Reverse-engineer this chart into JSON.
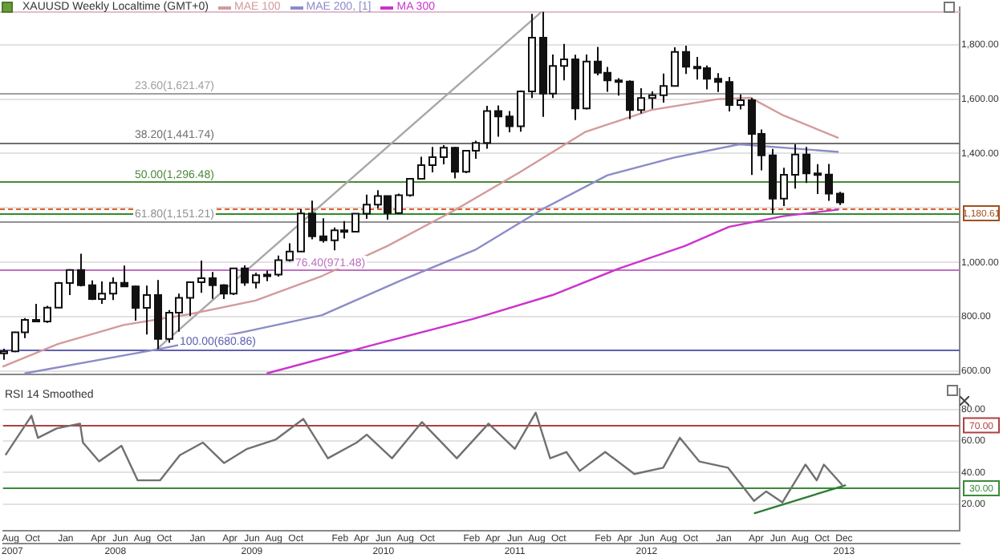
{
  "chart_data": [
    {
      "type": "candlestick",
      "title": "XAUUSD Weekly Localtime (GMT+0)",
      "legend": "top left",
      "grid": "y",
      "tick_labels": "y",
      "x": [
        "2007-08",
        "2007-09",
        "2007-10",
        "2007-11",
        "2007-12",
        "2008-01",
        "2008-02",
        "2008-03",
        "2008-04",
        "2008-05",
        "2008-06",
        "2008-07",
        "2008-08",
        "2008-09",
        "2008-10",
        "2008-11",
        "2008-12",
        "2009-01",
        "2009-02",
        "2009-03",
        "2009-04",
        "2009-05",
        "2009-06",
        "2009-07",
        "2009-08",
        "2009-09",
        "2009-10",
        "2009-11",
        "2009-12",
        "2010-01",
        "2010-02",
        "2010-03",
        "2010-04",
        "2010-05",
        "2010-06",
        "2010-07",
        "2010-08",
        "2010-09",
        "2010-10",
        "2010-11",
        "2010-12",
        "2011-01",
        "2011-02",
        "2011-03",
        "2011-04",
        "2011-05",
        "2011-06",
        "2011-07",
        "2011-08",
        "2011-09",
        "2011-10",
        "2011-11",
        "2011-12",
        "2012-01",
        "2012-02",
        "2012-03",
        "2012-04",
        "2012-05",
        "2012-06",
        "2012-07",
        "2012-08",
        "2012-09",
        "2012-10",
        "2012-11",
        "2012-12",
        "2013-01",
        "2013-02",
        "2013-03",
        "2013-04",
        "2013-05",
        "2013-06",
        "2013-07",
        "2013-08",
        "2013-09",
        "2013-10",
        "2013-11",
        "2013-12"
      ],
      "ohlc": [
        [
          666,
          683,
          642,
          673
        ],
        [
          673,
          745,
          670,
          743
        ],
        [
          743,
          795,
          722,
          789
        ],
        [
          789,
          848,
          781,
          783
        ],
        [
          783,
          840,
          778,
          834
        ],
        [
          834,
          928,
          834,
          924
        ],
        [
          924,
          975,
          880,
          972
        ],
        [
          972,
          1032,
          912,
          916
        ],
        [
          916,
          934,
          862,
          865
        ],
        [
          865,
          930,
          848,
          885
        ],
        [
          885,
          945,
          862,
          925
        ],
        [
          925,
          988,
          910,
          912
        ],
        [
          912,
          915,
          786,
          833
        ],
        [
          833,
          915,
          735,
          880
        ],
        [
          880,
          935,
          681,
          719
        ],
        [
          719,
          825,
          705,
          815
        ],
        [
          815,
          885,
          745,
          870
        ],
        [
          870,
          927,
          803,
          927
        ],
        [
          927,
          1007,
          888,
          942
        ],
        [
          942,
          965,
          866,
          916
        ],
        [
          916,
          920,
          865,
          885
        ],
        [
          885,
          980,
          880,
          978
        ],
        [
          978,
          989,
          914,
          926
        ],
        [
          926,
          962,
          904,
          953
        ],
        [
          953,
          970,
          931,
          955
        ],
        [
          955,
          1025,
          948,
          1008
        ],
        [
          1008,
          1070,
          1003,
          1040
        ],
        [
          1040,
          1195,
          1040,
          1180
        ],
        [
          1180,
          1227,
          1085,
          1096
        ],
        [
          1096,
          1162,
          1073,
          1081
        ],
        [
          1081,
          1128,
          1044,
          1118
        ],
        [
          1118,
          1152,
          1088,
          1113
        ],
        [
          1113,
          1179,
          1112,
          1179
        ],
        [
          1179,
          1249,
          1160,
          1212
        ],
        [
          1212,
          1265,
          1199,
          1244
        ],
        [
          1244,
          1245,
          1157,
          1181
        ],
        [
          1181,
          1253,
          1178,
          1247
        ],
        [
          1247,
          1310,
          1242,
          1307
        ],
        [
          1307,
          1388,
          1306,
          1357
        ],
        [
          1357,
          1424,
          1331,
          1387
        ],
        [
          1387,
          1431,
          1360,
          1421
        ],
        [
          1421,
          1424,
          1309,
          1333
        ],
        [
          1333,
          1411,
          1328,
          1410
        ],
        [
          1410,
          1447,
          1381,
          1439
        ],
        [
          1439,
          1575,
          1418,
          1556
        ],
        [
          1556,
          1577,
          1462,
          1536
        ],
        [
          1536,
          1556,
          1478,
          1500
        ],
        [
          1500,
          1632,
          1480,
          1628
        ],
        [
          1628,
          1913,
          1604,
          1826
        ],
        [
          1826,
          1921,
          1535,
          1620
        ],
        [
          1620,
          1764,
          1604,
          1722
        ],
        [
          1722,
          1803,
          1669,
          1746
        ],
        [
          1746,
          1763,
          1523,
          1566
        ],
        [
          1566,
          1764,
          1562,
          1738
        ],
        [
          1738,
          1792,
          1687,
          1697
        ],
        [
          1697,
          1718,
          1627,
          1669
        ],
        [
          1669,
          1677,
          1613,
          1664
        ],
        [
          1664,
          1669,
          1527,
          1560
        ],
        [
          1560,
          1640,
          1547,
          1604
        ],
        [
          1604,
          1628,
          1564,
          1614
        ],
        [
          1614,
          1694,
          1587,
          1648
        ],
        [
          1648,
          1790,
          1646,
          1773
        ],
        [
          1773,
          1796,
          1692,
          1719
        ],
        [
          1719,
          1755,
          1672,
          1714
        ],
        [
          1714,
          1723,
          1636,
          1675
        ],
        [
          1675,
          1695,
          1626,
          1663
        ],
        [
          1663,
          1681,
          1555,
          1578
        ],
        [
          1578,
          1617,
          1562,
          1596
        ],
        [
          1596,
          1605,
          1321,
          1472
        ],
        [
          1472,
          1488,
          1338,
          1393
        ],
        [
          1393,
          1417,
          1180,
          1234
        ],
        [
          1234,
          1348,
          1207,
          1322
        ],
        [
          1322,
          1434,
          1271,
          1396
        ],
        [
          1396,
          1424,
          1292,
          1327
        ],
        [
          1327,
          1361,
          1251,
          1323
        ],
        [
          1323,
          1362,
          1226,
          1253
        ],
        [
          1253,
          1259,
          1211,
          1220
        ]
      ],
      "series": [
        {
          "name": "MAE 100",
          "type": "line",
          "color": "#d49a9a",
          "x": [
            "2007-08",
            "2008-01",
            "2008-07",
            "2009-01",
            "2009-07",
            "2010-01",
            "2010-07",
            "2011-01",
            "2011-07",
            "2012-01",
            "2012-07",
            "2013-01",
            "2013-04",
            "2013-07",
            "2013-12"
          ],
          "values": [
            617,
            700,
            770,
            810,
            860,
            950,
            1060,
            1190,
            1330,
            1480,
            1560,
            1600,
            1605,
            1540,
            1457
          ]
        },
        {
          "name": "MAE 200, [1]",
          "type": "line",
          "color": "#8c8cc8",
          "x": [
            "2007-10",
            "2008-10",
            "2009-06",
            "2010-01",
            "2010-08",
            "2011-03",
            "2011-09",
            "2012-03",
            "2012-09",
            "2013-03",
            "2013-12"
          ],
          "values": [
            592,
            680,
            745,
            806,
            930,
            1046,
            1194,
            1320,
            1385,
            1434,
            1406
          ]
        },
        {
          "name": "MA 300",
          "type": "line",
          "color": "#cc33cc",
          "x": [
            "2009-08",
            "2010-06",
            "2011-03",
            "2011-10",
            "2012-04",
            "2012-10",
            "2013-02",
            "2013-07",
            "2013-12"
          ],
          "values": [
            592,
            700,
            794,
            880,
            977,
            1060,
            1131,
            1170,
            1194
          ]
        },
        {
          "type": "line",
          "color": "#a8a8a8",
          "x": [
            "2008-10",
            "2011-09"
          ],
          "values": [
            681,
            1921
          ]
        }
      ],
      "xlim": [
        "2007-07-25",
        "2014-11-01"
      ],
      "ylim": [
        589,
        1937
      ],
      "yticks": [
        {
          "value": 600,
          "label": "600.00"
        },
        {
          "value": 800,
          "label": "800.00"
        },
        {
          "value": 1000,
          "label": "1,000.00"
        },
        {
          "value": 1200,
          "label": null
        },
        {
          "value": 1400,
          "label": "1,400.00"
        },
        {
          "value": 1600,
          "label": "1,600.00"
        },
        {
          "value": 1800,
          "label": "1,800.00"
        }
      ],
      "ref_lines": [
        {
          "axis": "y",
          "value": 1921.15,
          "color": "#e0bcd0"
        },
        {
          "axis": "y",
          "value": 1621.47,
          "label": "23.60(1,621.47)",
          "color": "#a0a0a0"
        },
        {
          "axis": "y",
          "value": 1441.74,
          "label": "38.20(1,441.74)",
          "color": "#707070"
        },
        {
          "axis": "y",
          "value": 1296.48,
          "label": "50.00(1,296.48)",
          "color": "#4a8a3a"
        },
        {
          "axis": "y",
          "value": 1151.21,
          "label": "61.80(1,151.21)",
          "color": "#909090"
        },
        {
          "axis": "y",
          "value": 971.48,
          "label": "76.40(971.48)",
          "color": "#c070c0"
        },
        {
          "axis": "y",
          "value": 680.86,
          "label": "100.00(680.86)",
          "color": "#6060b0"
        },
        {
          "axis": "y",
          "value": 1180.61,
          "color": "#2e8b2e"
        },
        {
          "axis": "y",
          "value": 1200,
          "color": "#e06030",
          "line_style": "dashed"
        }
      ],
      "annotations": [
        {
          "text": "1,180.61",
          "y": 1180.61
        }
      ]
    },
    {
      "type": "line",
      "title": "RSI 14 Smoothed",
      "grid": "y",
      "series": [
        {
          "color": "#707070",
          "x": [
            "2007-08-01",
            "2007-10-12",
            "2007-10-30",
            "2007-12-21",
            "2008-02-24",
            "2008-03-03",
            "2008-04-17",
            "2008-06-18",
            "2008-08-02",
            "2008-10-03",
            "2008-11-27",
            "2009-01-30",
            "2009-03-30",
            "2009-06-02",
            "2009-08-21",
            "2009-11-05",
            "2010-01-12",
            "2010-04-02",
            "2010-04-30",
            "2010-07-09",
            "2010-09-30",
            "2011-01-05",
            "2011-04-03",
            "2011-06-15",
            "2011-08-12",
            "2011-09-21",
            "2011-11-05",
            "2011-12-12",
            "2012-02-21",
            "2012-05-12",
            "2012-07-31",
            "2012-09-15",
            "2012-11-08",
            "2013-01-27",
            "2013-04-09",
            "2013-05-13",
            "2013-06-27",
            "2013-08-30",
            "2013-09-30",
            "2013-10-20",
            "2013-12-10"
          ],
          "values": [
            51,
            76,
            62,
            68,
            71,
            59,
            47,
            57,
            35,
            35,
            51,
            59,
            46,
            55,
            61,
            74,
            49,
            59,
            64,
            49,
            72,
            49,
            71,
            55,
            78,
            49,
            53,
            41,
            53,
            39,
            43,
            62,
            47,
            43,
            22,
            28,
            21,
            45,
            35,
            45,
            32
          ]
        },
        {
          "type": "line",
          "color": "#2e7d32",
          "x": [
            "2013-04-09",
            "2013-12-20"
          ],
          "values": [
            14,
            32
          ]
        }
      ],
      "xlim": [
        "2007-07-25",
        "2014-11-01"
      ],
      "xticks": [
        {
          "value": "2007-08-15",
          "label": "Aug"
        },
        {
          "value": "2007-10-15",
          "label": "Oct"
        },
        {
          "value": "2008-01-15",
          "label": "Jan"
        },
        {
          "value": "2008-04-15",
          "label": "Apr"
        },
        {
          "value": "2008-06-15",
          "label": "Jun"
        },
        {
          "value": "2008-08-15",
          "label": "Aug"
        },
        {
          "value": "2008-10-15",
          "label": "Oct"
        },
        {
          "value": "2009-01-15",
          "label": "Jan"
        },
        {
          "value": "2009-04-15",
          "label": "Apr"
        },
        {
          "value": "2009-06-15",
          "label": "Jun"
        },
        {
          "value": "2009-08-15",
          "label": "Aug"
        },
        {
          "value": "2009-10-15",
          "label": "Oct"
        },
        {
          "value": "2010-02-15",
          "label": "Feb"
        },
        {
          "value": "2010-04-15",
          "label": "Apr"
        },
        {
          "value": "2010-06-15",
          "label": "Jun"
        },
        {
          "value": "2010-08-15",
          "label": "Aug"
        },
        {
          "value": "2010-10-15",
          "label": "Oct"
        },
        {
          "value": "2011-02-15",
          "label": "Feb"
        },
        {
          "value": "2011-04-15",
          "label": "Apr"
        },
        {
          "value": "2011-06-15",
          "label": "Jun"
        },
        {
          "value": "2011-08-15",
          "label": "Aug"
        },
        {
          "value": "2011-10-15",
          "label": "Oct"
        },
        {
          "value": "2012-02-15",
          "label": "Feb"
        },
        {
          "value": "2012-04-15",
          "label": "Apr"
        },
        {
          "value": "2012-06-15",
          "label": "Jun"
        },
        {
          "value": "2012-08-15",
          "label": "Aug"
        },
        {
          "value": "2012-10-15",
          "label": "Oct"
        },
        {
          "value": "2013-01-15",
          "label": "Jan"
        },
        {
          "value": "2013-04-15",
          "label": "Apr"
        },
        {
          "value": "2013-06-15",
          "label": "Jun"
        },
        {
          "value": "2013-08-15",
          "label": "Aug"
        },
        {
          "value": "2013-10-15",
          "label": "Oct"
        },
        {
          "value": "2013-12-15",
          "label": "Dec"
        }
      ],
      "x2lim": [
        "2007-07-25",
        "2014-11-01"
      ],
      "x2ticks": [
        {
          "value": "2007-08-20",
          "label": "2007"
        },
        {
          "value": "2008-06-01",
          "label": "2008"
        },
        {
          "value": "2009-06-15",
          "label": "2009"
        },
        {
          "value": "2010-06-15",
          "label": "2010"
        },
        {
          "value": "2011-06-15",
          "label": "2011"
        },
        {
          "value": "2012-06-15",
          "label": "2012"
        },
        {
          "value": "2013-12-15",
          "label": "2013"
        }
      ],
      "ylim": [
        3,
        93
      ],
      "yticks": [
        {
          "value": 20,
          "label": "20.00"
        },
        {
          "value": 40,
          "label": "40.00"
        },
        {
          "value": 60,
          "label": "60.00"
        },
        {
          "value": 80,
          "label": "80.00"
        }
      ],
      "ref_lines": [
        {
          "axis": "y",
          "value": 70,
          "label": "70.00",
          "color": "#b04040"
        },
        {
          "axis": "y",
          "value": 30,
          "label": "30.00",
          "color": "#3a8a3a"
        }
      ]
    }
  ]
}
